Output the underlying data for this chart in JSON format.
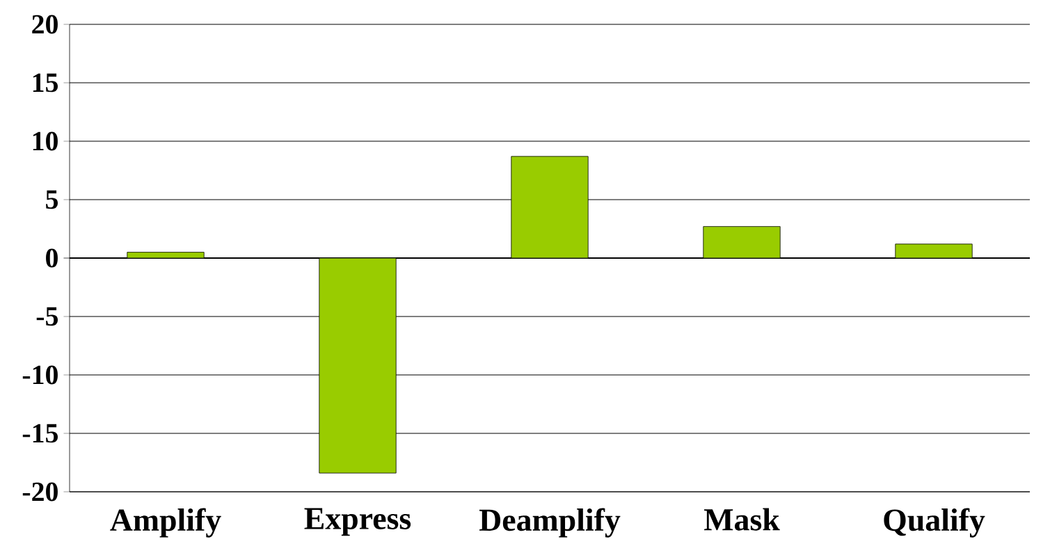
{
  "chart_data": {
    "type": "bar",
    "categories": [
      "Amplify",
      "Express",
      "Deamplify",
      "Mask",
      "Qualify"
    ],
    "values": [
      0.5,
      -18.4,
      8.7,
      2.7,
      1.2
    ],
    "color": "#99cc00",
    "ylim": [
      -20,
      20
    ],
    "yticks": [
      -20,
      -15,
      -10,
      -5,
      0,
      5,
      10,
      15,
      20
    ],
    "grid": "y"
  }
}
